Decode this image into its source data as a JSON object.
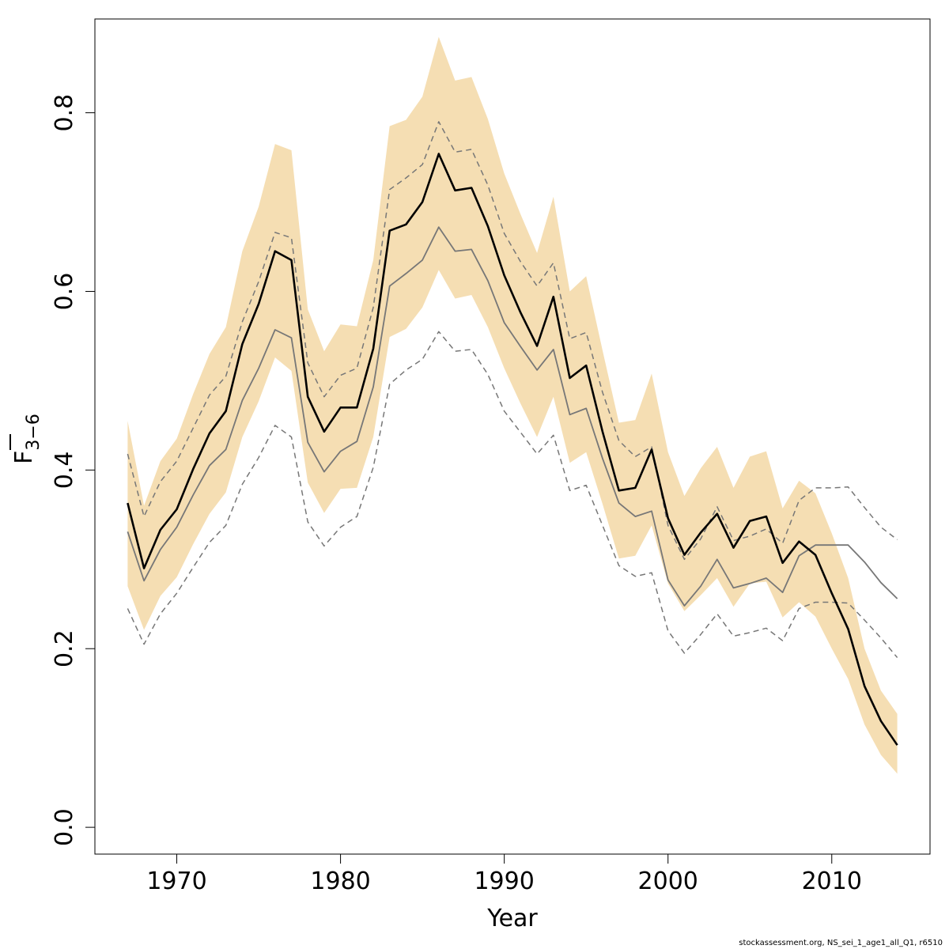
{
  "chart_data": {
    "type": "line",
    "xlabel": "Year",
    "ylabel": "F",
    "ylabel_subscript": "3−6",
    "xlim": [
      1965,
      2016
    ],
    "ylim": [
      -0.03,
      0.905
    ],
    "xticks": [
      1970,
      1980,
      1990,
      2000,
      2010
    ],
    "yticks": [
      0.0,
      0.2,
      0.4,
      0.6,
      0.8
    ],
    "ytick_labels": [
      "0.0",
      "0.2",
      "0.4",
      "0.6",
      "0.8"
    ],
    "grid": false,
    "colors": {
      "band": "#f5deb3",
      "estimate": "#000000",
      "retro": "#777777",
      "retro_ci": "#777777"
    },
    "x": [
      1967,
      1968,
      1969,
      1970,
      1971,
      1972,
      1973,
      1974,
      1975,
      1976,
      1977,
      1978,
      1979,
      1980,
      1981,
      1982,
      1983,
      1984,
      1985,
      1986,
      1987,
      1988,
      1989,
      1990,
      1991,
      1992,
      1993,
      1994,
      1995,
      1996,
      1997,
      1998,
      1999,
      2000,
      2001,
      2002,
      2003,
      2004,
      2005,
      2006,
      2007,
      2008,
      2009,
      2010,
      2011,
      2012,
      2013,
      2014
    ],
    "series": [
      {
        "role": "upper_band",
        "values": [
          0.455,
          0.36,
          0.41,
          0.435,
          0.485,
          0.53,
          0.56,
          0.645,
          0.695,
          0.765,
          0.758,
          0.58,
          0.533,
          0.563,
          0.561,
          0.635,
          0.785,
          0.792,
          0.818,
          0.885,
          0.836,
          0.84,
          0.793,
          0.732,
          0.686,
          0.643,
          0.706,
          0.6,
          0.617,
          0.534,
          0.453,
          0.456,
          0.508,
          0.42,
          0.371,
          0.402,
          0.426,
          0.38,
          0.415,
          0.421,
          0.357,
          0.388,
          0.374,
          0.329,
          0.279,
          0.2,
          0.153,
          0.127
        ]
      },
      {
        "role": "lower_band",
        "values": [
          0.27,
          0.221,
          0.259,
          0.28,
          0.317,
          0.351,
          0.375,
          0.437,
          0.477,
          0.526,
          0.511,
          0.386,
          0.352,
          0.379,
          0.38,
          0.437,
          0.549,
          0.558,
          0.582,
          0.624,
          0.592,
          0.596,
          0.56,
          0.514,
          0.474,
          0.437,
          0.482,
          0.408,
          0.42,
          0.362,
          0.301,
          0.304,
          0.338,
          0.273,
          0.242,
          0.26,
          0.279,
          0.247,
          0.273,
          0.275,
          0.235,
          0.252,
          0.236,
          0.2,
          0.166,
          0.115,
          0.081,
          0.06
        ]
      },
      {
        "role": "estimate",
        "values": [
          0.363,
          0.29,
          0.333,
          0.356,
          0.401,
          0.441,
          0.466,
          0.541,
          0.586,
          0.645,
          0.635,
          0.482,
          0.443,
          0.47,
          0.47,
          0.536,
          0.668,
          0.675,
          0.7,
          0.754,
          0.713,
          0.716,
          0.673,
          0.618,
          0.576,
          0.539,
          0.594,
          0.503,
          0.517,
          0.443,
          0.377,
          0.38,
          0.423,
          0.346,
          0.305,
          0.33,
          0.351,
          0.313,
          0.343,
          0.348,
          0.296,
          0.32,
          0.305,
          0.262,
          0.222,
          0.158,
          0.119,
          0.092
        ]
      },
      {
        "role": "retro",
        "values": [
          0.331,
          0.276,
          0.311,
          0.336,
          0.372,
          0.405,
          0.423,
          0.478,
          0.514,
          0.557,
          0.548,
          0.431,
          0.398,
          0.421,
          0.432,
          0.493,
          0.606,
          0.62,
          0.635,
          0.672,
          0.645,
          0.647,
          0.612,
          0.565,
          0.538,
          0.512,
          0.535,
          0.462,
          0.469,
          0.413,
          0.363,
          0.348,
          0.354,
          0.277,
          0.248,
          0.27,
          0.3,
          0.268,
          0.273,
          0.279,
          0.263,
          0.304,
          0.316,
          0.316,
          0.316,
          0.297,
          0.274,
          0.256
        ]
      },
      {
        "role": "retro_upper",
        "values": [
          0.418,
          0.348,
          0.387,
          0.41,
          0.447,
          0.484,
          0.505,
          0.566,
          0.611,
          0.666,
          0.66,
          0.52,
          0.482,
          0.506,
          0.514,
          0.582,
          0.714,
          0.727,
          0.742,
          0.79,
          0.756,
          0.759,
          0.719,
          0.665,
          0.633,
          0.606,
          0.632,
          0.547,
          0.554,
          0.487,
          0.433,
          0.415,
          0.426,
          0.338,
          0.3,
          0.323,
          0.359,
          0.321,
          0.326,
          0.334,
          0.318,
          0.366,
          0.38,
          0.38,
          0.381,
          0.358,
          0.336,
          0.322
        ]
      },
      {
        "role": "retro_lower",
        "values": [
          0.245,
          0.205,
          0.239,
          0.262,
          0.291,
          0.319,
          0.338,
          0.384,
          0.414,
          0.45,
          0.437,
          0.342,
          0.315,
          0.336,
          0.348,
          0.403,
          0.496,
          0.512,
          0.524,
          0.555,
          0.533,
          0.535,
          0.507,
          0.466,
          0.442,
          0.418,
          0.439,
          0.377,
          0.383,
          0.338,
          0.293,
          0.281,
          0.285,
          0.22,
          0.195,
          0.216,
          0.239,
          0.214,
          0.218,
          0.223,
          0.209,
          0.245,
          0.252,
          0.252,
          0.251,
          0.232,
          0.212,
          0.19
        ]
      }
    ]
  },
  "footer": {
    "text": "stockassessment.org, NS_sei_1_age1_all_Q1, r6510"
  }
}
